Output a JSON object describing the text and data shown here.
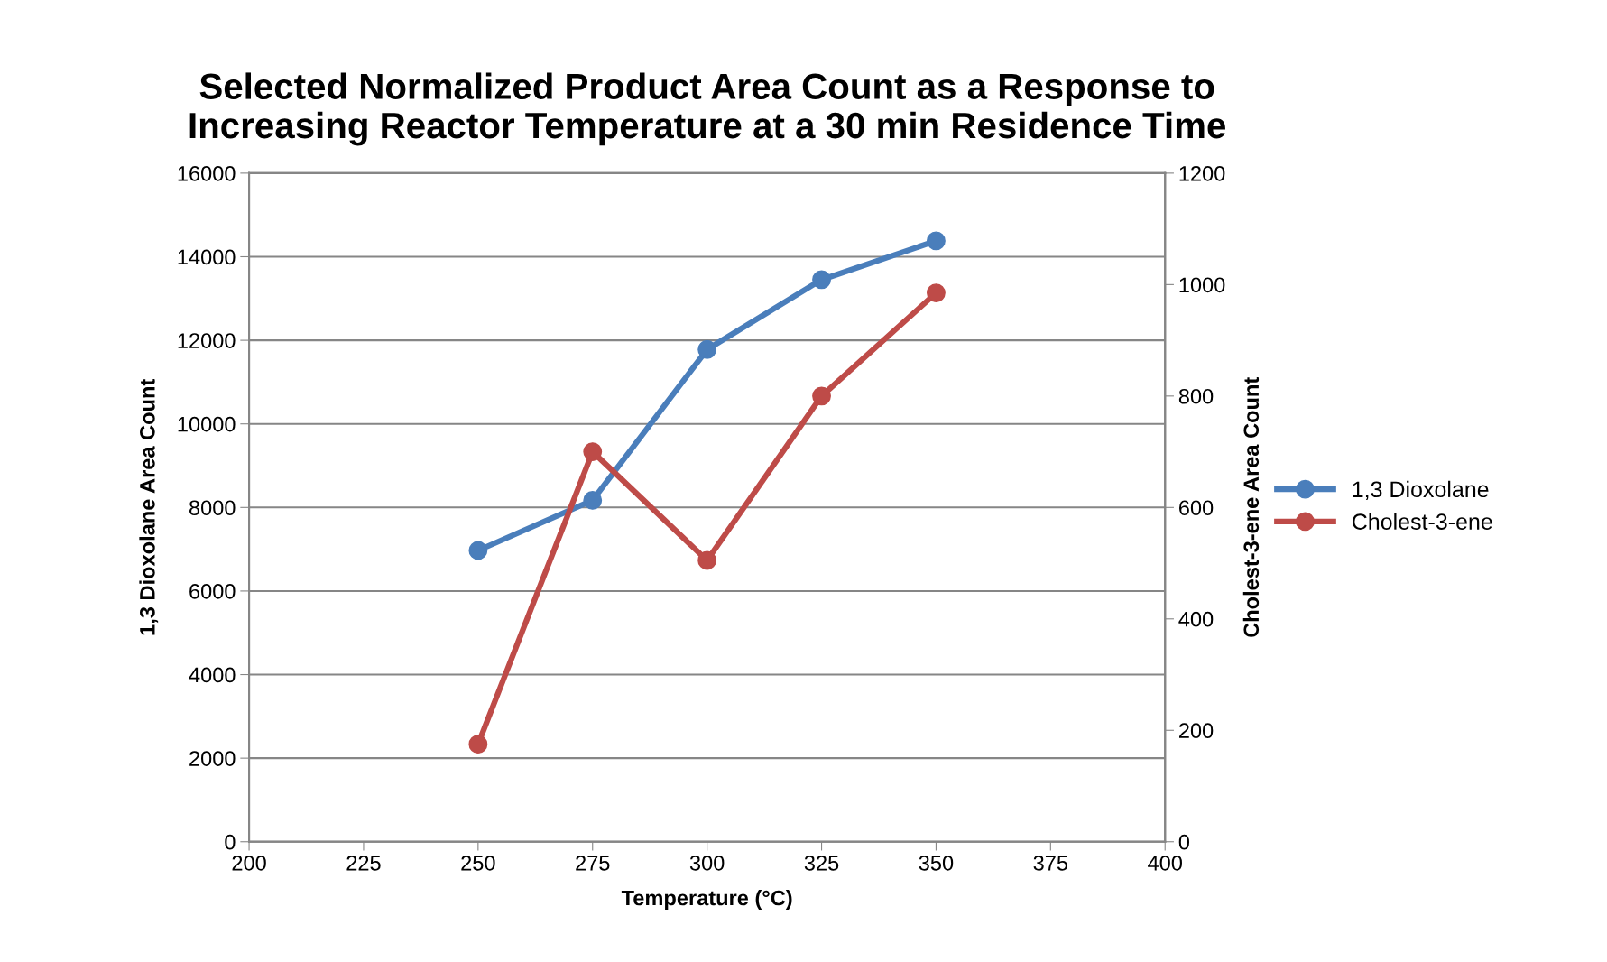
{
  "chart_data": {
    "type": "line",
    "title": "Selected Normalized Product Area Count as a Response to\nIncreasing Reactor Temperature at a 30 min Residence Time",
    "xlabel": "Temperature (°C)",
    "ylabel": "1,3 Dioxolane Area Count",
    "y2label": "Cholest-3-ene Area Count",
    "x": [
      250,
      275,
      300,
      325,
      350
    ],
    "series": [
      {
        "name": "1,3 Dioxolane",
        "color": "#4a7ebb",
        "values": [
          6970,
          8170,
          11780,
          13450,
          14380
        ]
      },
      {
        "name": "Cholest-3-ene",
        "color": "#be4b48",
        "values": [
          175,
          700,
          505,
          800,
          985
        ],
        "axis": "y2"
      }
    ],
    "xlim": [
      200,
      400
    ],
    "xticks": [
      200,
      225,
      250,
      275,
      300,
      325,
      350,
      375,
      400
    ],
    "ylim": [
      0,
      16000
    ],
    "yticks": [
      0,
      2000,
      4000,
      6000,
      8000,
      10000,
      12000,
      14000,
      16000
    ],
    "y2lim": [
      0,
      1200
    ],
    "y2ticks": [
      0,
      200,
      400,
      600,
      800,
      1000,
      1200
    ],
    "grid": "y",
    "legend": "right",
    "marker": "circle",
    "line_style": "solid"
  }
}
